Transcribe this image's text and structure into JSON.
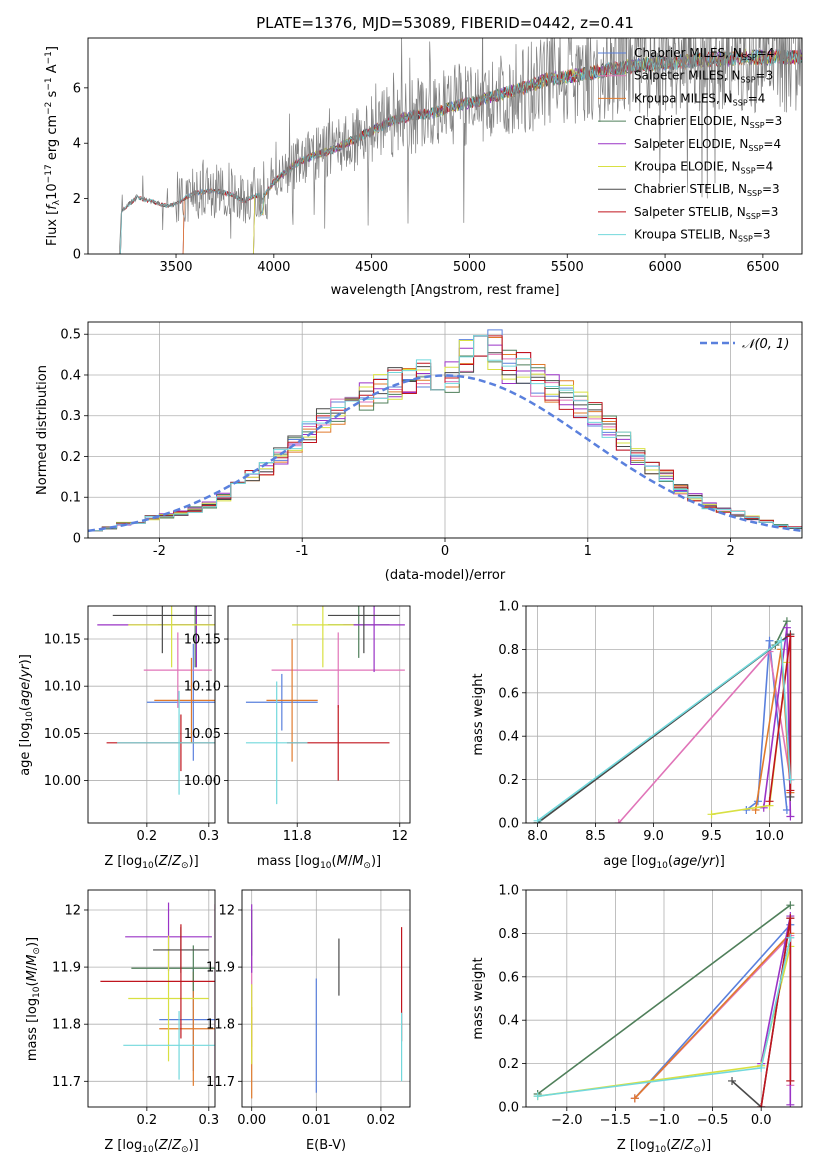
{
  "colors": [
    "#5a80dd",
    "#e074b8",
    "#e07a2c",
    "#4f7f5a",
    "#9a33c6",
    "#d8e042",
    "#4a4a4a",
    "#c0151e",
    "#72d8dc"
  ],
  "chart_data": [
    {
      "id": "spectrum",
      "type": "line",
      "title": "PLATE=1376, MJD=53089, FIBERID=0442, z=0.41",
      "xlabel": "wavelength [Angstrom, rest frame]",
      "ylabel": "Flux [f_λ 10^-17 erg cm^-2 s^-1 A^-1]",
      "xlim": [
        3050,
        6700
      ],
      "ylim": [
        0,
        7.8
      ],
      "xticks": [
        3500,
        4000,
        4500,
        5000,
        5500,
        6000,
        6500
      ],
      "yticks": [
        0,
        2,
        4,
        6
      ],
      "grid": false,
      "legend_position": "top-right",
      "data_trace": {
        "name": "data",
        "color": "#808080"
      },
      "continuum_points": [
        [
          3210,
          0
        ],
        [
          3220,
          1.55
        ],
        [
          3260,
          1.8
        ],
        [
          3300,
          2.05
        ],
        [
          3350,
          1.95
        ],
        [
          3400,
          1.85
        ],
        [
          3450,
          1.75
        ],
        [
          3500,
          1.8
        ],
        [
          3550,
          2.05
        ],
        [
          3600,
          2.2
        ],
        [
          3700,
          2.3
        ],
        [
          3800,
          2.1
        ],
        [
          3850,
          1.9
        ],
        [
          3900,
          2.1
        ],
        [
          3950,
          2.1
        ],
        [
          4000,
          2.6
        ],
        [
          4100,
          3.2
        ],
        [
          4200,
          3.55
        ],
        [
          4300,
          3.75
        ],
        [
          4400,
          4.1
        ],
        [
          4500,
          4.45
        ],
        [
          4600,
          4.8
        ],
        [
          4700,
          5.0
        ],
        [
          4800,
          5.05
        ],
        [
          4900,
          5.3
        ],
        [
          5000,
          5.45
        ],
        [
          5100,
          5.65
        ],
        [
          5200,
          5.85
        ],
        [
          5300,
          6.05
        ],
        [
          5400,
          6.3
        ],
        [
          5500,
          6.4
        ],
        [
          5600,
          6.5
        ],
        [
          5700,
          6.65
        ],
        [
          5800,
          6.75
        ],
        [
          5900,
          6.85
        ],
        [
          6000,
          6.9
        ],
        [
          6100,
          6.95
        ],
        [
          6200,
          7.0
        ],
        [
          6300,
          7.05
        ],
        [
          6400,
          7.1
        ],
        [
          6500,
          7.1
        ],
        [
          6600,
          7.1
        ],
        [
          6700,
          7.1
        ]
      ],
      "series": [
        {
          "name": "Chabrier MILES, N",
          "sub": "SSP",
          "suffix": "=4",
          "start": 3540
        },
        {
          "name": "Salpeter MILES, N",
          "sub": "SSP",
          "suffix": "=3",
          "start": 3540
        },
        {
          "name": "Kroupa MILES, N",
          "sub": "SSP",
          "suffix": "=4",
          "start": 3540
        },
        {
          "name": "Chabrier ELODIE, N",
          "sub": "SSP",
          "suffix": "=3",
          "start": 3900
        },
        {
          "name": "Salpeter ELODIE, N",
          "sub": "SSP",
          "suffix": "=4",
          "start": 3900
        },
        {
          "name": "Kroupa ELODIE, N",
          "sub": "SSP",
          "suffix": "=4",
          "start": 3900
        },
        {
          "name": "Chabrier STELIB, N",
          "sub": "SSP",
          "suffix": "=3",
          "start": 3220
        },
        {
          "name": "Salpeter STELIB, N",
          "sub": "SSP",
          "suffix": "=3",
          "start": 3220
        },
        {
          "name": "Kroupa STELIB, N",
          "sub": "SSP",
          "suffix": "=3",
          "start": 3220
        }
      ]
    },
    {
      "id": "residuals",
      "type": "histogram",
      "xlabel": "(data-model)/error",
      "ylabel": "Normed distribution",
      "xlim": [
        -2.5,
        2.5
      ],
      "ylim": [
        0,
        0.53
      ],
      "xticks": [
        -2,
        -1,
        0,
        1,
        2
      ],
      "yticks": [
        0.0,
        0.1,
        0.2,
        0.3,
        0.4,
        0.5
      ],
      "grid": true,
      "legend": "𝒩(0, 1)",
      "legend_position": "top-right",
      "bins": [
        -2.5,
        -2.4,
        -2.3,
        -2.2,
        -2.1,
        -2.0,
        -1.9,
        -1.8,
        -1.7,
        -1.6,
        -1.5,
        -1.4,
        -1.3,
        -1.2,
        -1.1,
        -1.0,
        -0.9,
        -0.8,
        -0.7,
        -0.6,
        -0.5,
        -0.4,
        -0.3,
        -0.2,
        -0.1,
        0.0,
        0.1,
        0.2,
        0.3,
        0.4,
        0.5,
        0.6,
        0.7,
        0.8,
        0.9,
        1.0,
        1.1,
        1.2,
        1.3,
        1.4,
        1.5,
        1.6,
        1.7,
        1.8,
        1.9,
        2.0,
        2.1,
        2.2,
        2.3,
        2.4
      ],
      "reference_values": [
        0.02,
        0.025,
        0.035,
        0.04,
        0.05,
        0.055,
        0.06,
        0.07,
        0.08,
        0.1,
        0.13,
        0.15,
        0.17,
        0.2,
        0.23,
        0.26,
        0.29,
        0.31,
        0.33,
        0.35,
        0.37,
        0.38,
        0.39,
        0.395,
        0.4,
        0.4,
        0.44,
        0.45,
        0.46,
        0.42,
        0.41,
        0.39,
        0.37,
        0.35,
        0.33,
        0.3,
        0.27,
        0.24,
        0.2,
        0.17,
        0.15,
        0.12,
        0.1,
        0.08,
        0.07,
        0.06,
        0.05,
        0.04,
        0.03,
        0.025
      ],
      "gaussian": {
        "mean": 0,
        "sigma": 1,
        "color": "#5a80dd"
      }
    },
    {
      "id": "age-vs-Z",
      "type": "errorbar",
      "xlabel": "Z [log10(Z/Z⊙)]",
      "ylabel": "age  [log10(age/yr)]",
      "xlim": [
        0.105,
        0.31
      ],
      "ylim": [
        9.955,
        10.185
      ],
      "xticks": [
        0.2,
        0.3
      ],
      "yticks": [
        10.0,
        10.05,
        10.1,
        10.15
      ],
      "ytick_labels": [
        "10.00",
        "10.05",
        "10.10",
        "10.15"
      ],
      "grid": true,
      "points": [
        {
          "x": 0.275,
          "xerr": 0.075,
          "y": 10.083,
          "yerr": 0.062
        },
        {
          "x": 0.25,
          "xerr": 0.055,
          "y": 10.117,
          "yerr": 0.04
        },
        {
          "x": 0.272,
          "xerr": 0.06,
          "y": 10.085,
          "yerr": 0.045
        },
        {
          "x": 0.278,
          "xerr": 0.06,
          "y": 10.165,
          "yerr": 0.045
        },
        {
          "x": 0.28,
          "xerr": 0.16,
          "y": 10.165,
          "yerr": 0.045
        },
        {
          "x": 0.24,
          "xerr": 0.07,
          "y": 10.165,
          "yerr": 0.045
        },
        {
          "x": 0.225,
          "xerr": 0.08,
          "y": 10.175,
          "yerr": 0.04
        },
        {
          "x": 0.255,
          "xerr": 0.12,
          "y": 10.04,
          "yerr": 0.03
        },
        {
          "x": 0.252,
          "xerr": 0.1,
          "y": 10.04,
          "yerr": 0.055
        }
      ]
    },
    {
      "id": "age-vs-mass",
      "type": "errorbar",
      "xlabel": "mass [log10(M/M⊙)]",
      "ylabel": "",
      "xlim": [
        11.665,
        12.02
      ],
      "ylim": [
        9.955,
        10.185
      ],
      "xticks": [
        11.8,
        12.0
      ],
      "yticks": [
        10.0,
        10.05,
        10.1,
        10.15
      ],
      "ytick_labels": [
        "10.00",
        "10.05",
        "10.10",
        "10.15"
      ],
      "grid": true,
      "points": [
        {
          "x": 11.77,
          "xerr": 0.07,
          "y": 10.083,
          "yerr": 0.03
        },
        {
          "x": 11.88,
          "xerr": 0.13,
          "y": 10.117,
          "yerr": 0.04
        },
        {
          "x": 11.79,
          "xerr": 0.05,
          "y": 10.085,
          "yerr": 0.065
        },
        {
          "x": 11.92,
          "xerr": 0.06,
          "y": 10.165,
          "yerr": 0.035
        },
        {
          "x": 11.95,
          "xerr": 0.06,
          "y": 10.165,
          "yerr": 0.05
        },
        {
          "x": 11.85,
          "xerr": 0.06,
          "y": 10.165,
          "yerr": 0.045
        },
        {
          "x": 11.93,
          "xerr": 0.07,
          "y": 10.175,
          "yerr": 0.04
        },
        {
          "x": 11.88,
          "xerr": 0.1,
          "y": 10.04,
          "yerr": 0.04
        },
        {
          "x": 11.76,
          "xerr": 0.06,
          "y": 10.04,
          "yerr": 0.065
        }
      ]
    },
    {
      "id": "weight-vs-age",
      "type": "line",
      "xlabel": "age  [log10(age/yr)]",
      "ylabel": "mass weight",
      "xlim": [
        7.9,
        10.28
      ],
      "ylim": [
        0,
        1.0
      ],
      "xticks": [
        8.0,
        8.5,
        9.0,
        9.5,
        10.0
      ],
      "xtick_labels": [
        "8.0",
        "8.5",
        "9.0",
        "9.5",
        "10.0"
      ],
      "yticks": [
        0,
        0.2,
        0.4,
        0.6,
        0.8,
        1.0
      ],
      "ytick_labels": [
        "0.0",
        "0.2",
        "0.4",
        "0.6",
        "0.8",
        "1.0"
      ],
      "grid": true,
      "series": [
        {
          "points": [
            [
              9.8,
              0.06
            ],
            [
              9.9,
              0.1
            ],
            [
              10.0,
              0.84
            ],
            [
              10.15,
              0.06
            ]
          ]
        },
        {
          "points": [
            [
              8.7,
              0.0
            ],
            [
              10.0,
              0.79
            ],
            [
              10.18,
              0.2
            ]
          ]
        },
        {
          "points": [
            [
              9.88,
              0.06
            ],
            [
              10.1,
              0.8
            ],
            [
              10.18,
              0.14
            ]
          ]
        },
        {
          "points": [
            [
              8.0,
              0.0
            ],
            [
              10.05,
              0.82
            ],
            [
              10.15,
              0.93
            ]
          ]
        },
        {
          "points": [
            [
              9.95,
              0.07
            ],
            [
              10.15,
              0.9
            ],
            [
              10.18,
              0.03
            ]
          ]
        },
        {
          "points": [
            [
              9.5,
              0.04
            ],
            [
              10.0,
              0.08
            ],
            [
              10.15,
              0.74
            ]
          ]
        },
        {
          "points": [
            [
              8.0,
              0.0
            ],
            [
              10.18,
              0.87
            ],
            [
              10.18,
              0.12
            ]
          ]
        },
        {
          "points": [
            [
              10.0,
              0.1
            ],
            [
              10.18,
              0.86
            ],
            [
              10.18,
              0.15
            ]
          ]
        },
        {
          "points": [
            [
              8.0,
              0.01
            ],
            [
              10.1,
              0.84
            ],
            [
              10.18,
              0.2
            ]
          ]
        }
      ]
    },
    {
      "id": "mass-vs-Z",
      "type": "errorbar",
      "xlabel": "Z [log10(Z/Z⊙)]",
      "ylabel": "mass [log10(M/M⊙)]",
      "xlim": [
        0.105,
        0.31
      ],
      "ylim": [
        11.655,
        12.035
      ],
      "xticks": [
        0.2,
        0.3
      ],
      "yticks": [
        11.7,
        11.8,
        11.9,
        12.0
      ],
      "grid": true,
      "points": [
        {
          "x": 0.275,
          "xerr": 0.055,
          "y": 11.808,
          "yerr": 0.09
        },
        {
          "x": 0.31,
          "xerr": 0.0,
          "y": 11.85,
          "yerr": 0.16
        },
        {
          "x": 0.275,
          "xerr": 0.055,
          "y": 11.792,
          "yerr": 0.1
        },
        {
          "x": 0.275,
          "xerr": 0.1,
          "y": 11.898,
          "yerr": 0.04
        },
        {
          "x": 0.235,
          "xerr": 0.07,
          "y": 11.953,
          "yerr": 0.06
        },
        {
          "x": 0.235,
          "xerr": 0.065,
          "y": 11.845,
          "yerr": 0.11
        },
        {
          "x": 0.255,
          "xerr": 0.045,
          "y": 11.93,
          "yerr": 0.04
        },
        {
          "x": 0.255,
          "xerr": 0.13,
          "y": 11.875,
          "yerr": 0.1
        },
        {
          "x": 0.252,
          "xerr": 0.09,
          "y": 11.763,
          "yerr": 0.06
        }
      ]
    },
    {
      "id": "mass-vs-ebv",
      "type": "errorbar",
      "xlabel": "E(B-V)",
      "ylabel": "",
      "xlim": [
        -0.0015,
        0.0245
      ],
      "ylim": [
        11.655,
        12.035
      ],
      "xticks": [
        0.0,
        0.01,
        0.02
      ],
      "xtick_labels": [
        "0.00",
        "0.01",
        "0.02"
      ],
      "yticks": [
        11.7,
        11.8,
        11.9,
        12.0
      ],
      "grid": true,
      "points": [
        {
          "x": 0.01,
          "xerr": 0,
          "y": 11.78,
          "yerr": 0.1
        },
        {
          "x": 0.0,
          "xerr": 0,
          "y": 11.86,
          "yerr": 0.1
        },
        {
          "x": 0.0,
          "xerr": 0,
          "y": 11.75,
          "yerr": 0.08
        },
        {
          "x": 0.0,
          "xerr": 0,
          "y": 11.96,
          "yerr": 0.04
        },
        {
          "x": 0.0,
          "xerr": 0,
          "y": 11.95,
          "yerr": 0.06
        },
        {
          "x": 0.0,
          "xerr": 0,
          "y": 11.8,
          "yerr": 0.07
        },
        {
          "x": 0.0135,
          "xerr": 0,
          "y": 11.9,
          "yerr": 0.05
        },
        {
          "x": 0.0232,
          "xerr": 0,
          "y": 11.87,
          "yerr": 0.1
        },
        {
          "x": 0.0232,
          "xerr": 0,
          "y": 11.76,
          "yerr": 0.06
        }
      ]
    },
    {
      "id": "weight-vs-Z",
      "type": "line",
      "xlabel": "Z [log10(Z/Z⊙)]",
      "ylabel": "mass weight",
      "xlim": [
        -2.42,
        0.42
      ],
      "ylim": [
        0,
        1.0
      ],
      "xticks": [
        -2.0,
        -1.5,
        -1.0,
        -0.5,
        0.0
      ],
      "xtick_labels": [
        "−2.0",
        "−1.5",
        "−1.0",
        "−0.5",
        "0.0"
      ],
      "yticks": [
        0,
        0.2,
        0.4,
        0.6,
        0.8,
        1.0
      ],
      "ytick_labels": [
        "0.0",
        "0.2",
        "0.4",
        "0.6",
        "0.8",
        "1.0"
      ],
      "grid": true,
      "series": [
        {
          "points": [
            [
              -1.3,
              0.04
            ],
            [
              0.3,
              0.84
            ],
            [
              0.3,
              0.12
            ]
          ]
        },
        {
          "points": [
            [
              -1.3,
              0.04
            ],
            [
              0.3,
              0.79
            ],
            [
              0.3,
              0.1
            ]
          ]
        },
        {
          "points": [
            [
              -1.3,
              0.04
            ],
            [
              0.3,
              0.8
            ],
            [
              0.3,
              0.12
            ]
          ]
        },
        {
          "points": [
            [
              -2.3,
              0.06
            ],
            [
              0.3,
              0.93
            ]
          ]
        },
        {
          "points": [
            [
              0.0,
              0.2
            ],
            [
              0.3,
              0.88
            ],
            [
              0.3,
              0.01
            ]
          ]
        },
        {
          "points": [
            [
              -2.3,
              0.05
            ],
            [
              0.0,
              0.19
            ],
            [
              0.3,
              0.74
            ]
          ]
        },
        {
          "points": [
            [
              -0.3,
              0.12
            ],
            [
              0.0,
              0.0
            ],
            [
              0.3,
              0.87
            ]
          ]
        },
        {
          "points": [
            [
              0.0,
              0.0
            ],
            [
              0.3,
              0.87
            ],
            [
              0.3,
              0.12
            ]
          ]
        },
        {
          "points": [
            [
              -2.3,
              0.05
            ],
            [
              0.0,
              0.18
            ],
            [
              0.3,
              0.78
            ]
          ]
        }
      ]
    }
  ]
}
